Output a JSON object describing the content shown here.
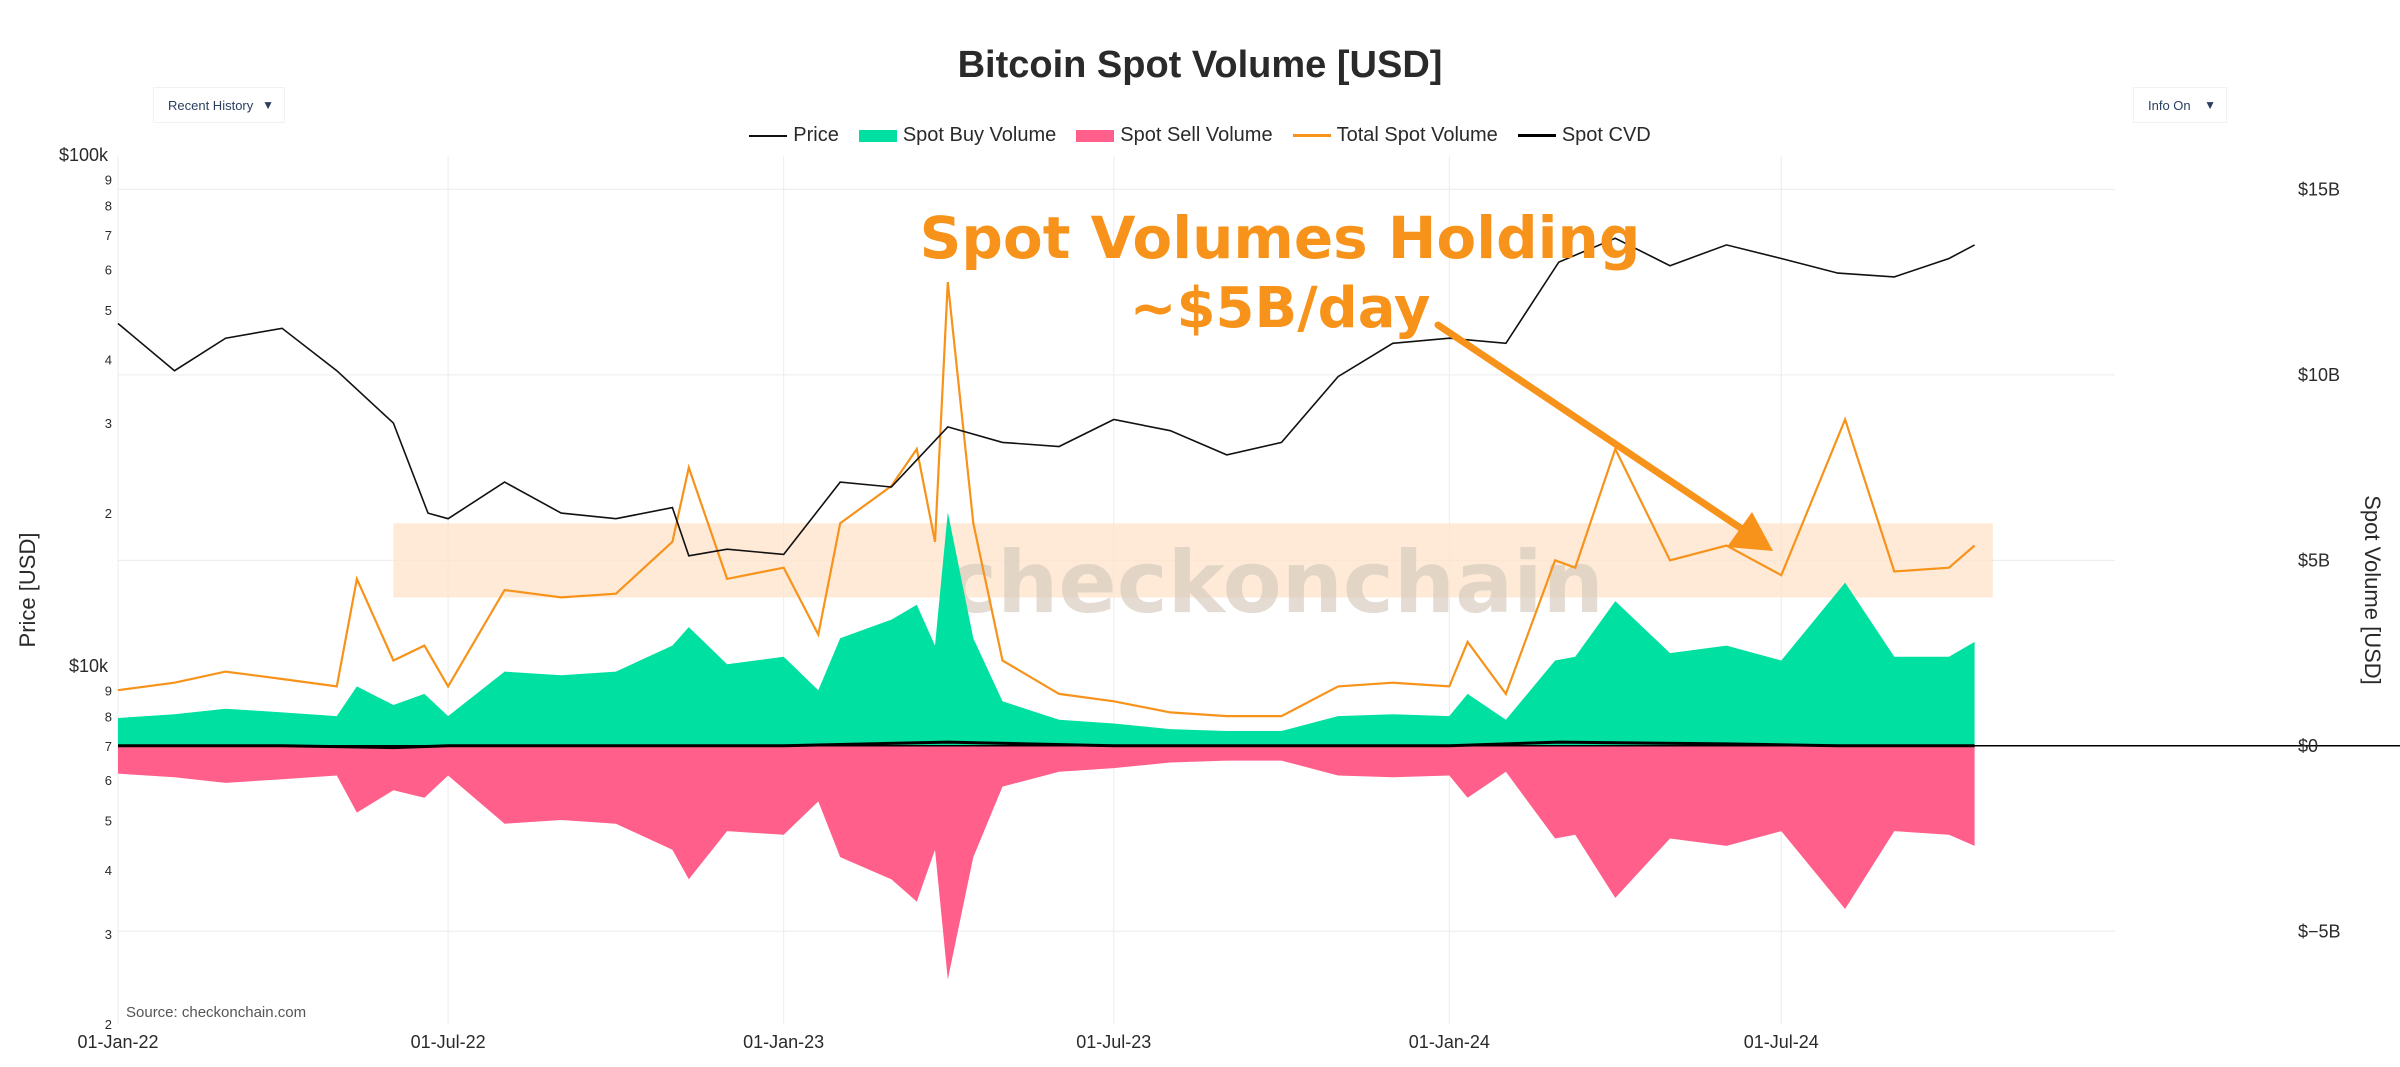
{
  "chart_data": {
    "type": "area",
    "title": "Bitcoin Spot Volume [USD]",
    "controls": {
      "left_dropdown": "Recent History",
      "right_dropdown": "Info On",
      "arrow": "▼"
    },
    "legend": [
      "Price",
      "Spot Buy Volume",
      "Spot Sell Volume",
      "Total Spot Volume",
      "Spot CVD"
    ],
    "colors": {
      "price": "#111111",
      "buy": "#00e0a0",
      "sell": "#ff5f8a",
      "total": "#f7931a",
      "cvd": "#000000",
      "band": "#fde3c8"
    },
    "annotation": {
      "line1": "Spot Volumes Holding",
      "line2": "~$5B/day"
    },
    "watermark": "checkonchain",
    "source": "Source: checkonchain.com",
    "y_left": {
      "label": "Price [USD]",
      "scale": "log",
      "ticks": [
        {
          "v": 2000,
          "t": "2"
        },
        {
          "v": 3000,
          "t": "3"
        },
        {
          "v": 4000,
          "t": "4"
        },
        {
          "v": 5000,
          "t": "5"
        },
        {
          "v": 6000,
          "t": "6"
        },
        {
          "v": 7000,
          "t": "7"
        },
        {
          "v": 8000,
          "t": "8"
        },
        {
          "v": 9000,
          "t": "9"
        },
        {
          "v": 10000,
          "t": "$10k"
        },
        {
          "v": 20000,
          "t": "2"
        },
        {
          "v": 30000,
          "t": "3"
        },
        {
          "v": 40000,
          "t": "4"
        },
        {
          "v": 50000,
          "t": "5"
        },
        {
          "v": 60000,
          "t": "6"
        },
        {
          "v": 70000,
          "t": "7"
        },
        {
          "v": 80000,
          "t": "8"
        },
        {
          "v": 90000,
          "t": "9"
        },
        {
          "v": 100000,
          "t": "$100k"
        }
      ]
    },
    "y_right": {
      "label": "Spot Volume [USD]",
      "range": [
        -7.5,
        15.9
      ],
      "ticks": [
        {
          "v": 15,
          "t": "$15B"
        },
        {
          "v": 10,
          "t": "$10B"
        },
        {
          "v": 5,
          "t": "$5B"
        },
        {
          "v": 0,
          "t": "$0"
        },
        {
          "v": -5,
          "t": "$−5B"
        }
      ]
    },
    "x_axis": {
      "ticks": [
        "01-Jan-22",
        "01-Jul-22",
        "01-Jan-23",
        "01-Jul-23",
        "01-Jan-24",
        "01-Jul-24"
      ]
    },
    "band_range_b": [
      4,
      6
    ],
    "series": {
      "price": {
        "name": "Price",
        "x": [
          "2022-01-01",
          "2022-02-01",
          "2022-03-01",
          "2022-04-01",
          "2022-05-01",
          "2022-06-01",
          "2022-06-20",
          "2022-07-01",
          "2022-08-01",
          "2022-09-01",
          "2022-10-01",
          "2022-11-01",
          "2022-11-10",
          "2022-12-01",
          "2023-01-01",
          "2023-02-01",
          "2023-03-01",
          "2023-04-01",
          "2023-05-01",
          "2023-06-01",
          "2023-07-01",
          "2023-08-01",
          "2023-09-01",
          "2023-10-01",
          "2023-11-01",
          "2023-12-01",
          "2024-01-01",
          "2024-02-01",
          "2024-03-01",
          "2024-04-01",
          "2024-05-01",
          "2024-06-01",
          "2024-07-01",
          "2024-08-01",
          "2024-09-01",
          "2024-10-01",
          "2024-10-15"
        ],
        "y": [
          47000,
          38000,
          44000,
          46000,
          38000,
          30000,
          20000,
          19500,
          23000,
          20000,
          19500,
          20500,
          16500,
          17000,
          16600,
          23000,
          22500,
          29500,
          27500,
          27000,
          30500,
          29000,
          26000,
          27500,
          37000,
          43000,
          44000,
          43000,
          62000,
          69000,
          61000,
          67000,
          63000,
          59000,
          58000,
          63000,
          67000
        ]
      },
      "total_spot_volume": {
        "name": "Total Spot Volume",
        "x": [
          "2022-01-01",
          "2022-02-01",
          "2022-03-01",
          "2022-04-01",
          "2022-05-01",
          "2022-05-12",
          "2022-06-01",
          "2022-06-18",
          "2022-07-01",
          "2022-08-01",
          "2022-09-01",
          "2022-10-01",
          "2022-11-01",
          "2022-11-10",
          "2022-12-01",
          "2023-01-01",
          "2023-01-20",
          "2023-02-01",
          "2023-03-01",
          "2023-03-15",
          "2023-03-25",
          "2023-04-01",
          "2023-04-15",
          "2023-05-01",
          "2023-06-01",
          "2023-07-01",
          "2023-08-01",
          "2023-09-01",
          "2023-10-01",
          "2023-11-01",
          "2023-12-01",
          "2024-01-01",
          "2024-01-11",
          "2024-02-01",
          "2024-02-28",
          "2024-03-10",
          "2024-04-01",
          "2024-05-01",
          "2024-06-01",
          "2024-07-01",
          "2024-08-05",
          "2024-09-01",
          "2024-10-01",
          "2024-10-15"
        ],
        "y": [
          1.5,
          1.7,
          2.0,
          1.8,
          1.6,
          4.5,
          2.3,
          2.7,
          1.6,
          4.2,
          4.0,
          4.1,
          5.5,
          7.5,
          4.5,
          4.8,
          3.0,
          6.0,
          7.0,
          8.0,
          5.5,
          12.5,
          6.0,
          2.3,
          1.4,
          1.2,
          0.9,
          0.8,
          0.8,
          1.6,
          1.7,
          1.6,
          2.8,
          1.4,
          5.0,
          4.8,
          8.0,
          5.0,
          5.4,
          4.6,
          8.8,
          4.7,
          4.8,
          5.4
        ]
      },
      "spot_buy_volume": {
        "name": "Spot Buy Volume",
        "x": [
          "2022-01-01",
          "2022-02-01",
          "2022-03-01",
          "2022-04-01",
          "2022-05-01",
          "2022-05-12",
          "2022-06-01",
          "2022-06-18",
          "2022-07-01",
          "2022-08-01",
          "2022-09-01",
          "2022-10-01",
          "2022-11-01",
          "2022-11-10",
          "2022-12-01",
          "2023-01-01",
          "2023-01-20",
          "2023-02-01",
          "2023-03-01",
          "2023-03-15",
          "2023-03-25",
          "2023-04-01",
          "2023-04-15",
          "2023-05-01",
          "2023-06-01",
          "2023-07-01",
          "2023-08-01",
          "2023-09-01",
          "2023-10-01",
          "2023-11-01",
          "2023-12-01",
          "2024-01-01",
          "2024-01-11",
          "2024-02-01",
          "2024-02-28",
          "2024-03-10",
          "2024-04-01",
          "2024-05-01",
          "2024-06-01",
          "2024-07-01",
          "2024-08-05",
          "2024-09-01",
          "2024-10-01",
          "2024-10-15"
        ],
        "y": [
          0.75,
          0.85,
          1.0,
          0.9,
          0.8,
          1.6,
          1.1,
          1.4,
          0.8,
          2.0,
          1.9,
          2.0,
          2.7,
          3.2,
          2.2,
          2.4,
          1.5,
          2.9,
          3.4,
          3.8,
          2.7,
          6.3,
          2.9,
          1.2,
          0.7,
          0.6,
          0.45,
          0.4,
          0.4,
          0.8,
          0.85,
          0.8,
          1.4,
          0.7,
          2.3,
          2.4,
          3.9,
          2.5,
          2.7,
          2.3,
          4.4,
          2.4,
          2.4,
          2.8
        ]
      },
      "spot_sell_volume": {
        "name": "Spot Sell Volume",
        "x": [
          "2022-01-01",
          "2022-02-01",
          "2022-03-01",
          "2022-04-01",
          "2022-05-01",
          "2022-05-12",
          "2022-06-01",
          "2022-06-18",
          "2022-07-01",
          "2022-08-01",
          "2022-09-01",
          "2022-10-01",
          "2022-11-01",
          "2022-11-10",
          "2022-12-01",
          "2023-01-01",
          "2023-01-20",
          "2023-02-01",
          "2023-03-01",
          "2023-03-15",
          "2023-03-25",
          "2023-04-01",
          "2023-04-15",
          "2023-05-01",
          "2023-06-01",
          "2023-07-01",
          "2023-08-01",
          "2023-09-01",
          "2023-10-01",
          "2023-11-01",
          "2023-12-01",
          "2024-01-01",
          "2024-01-11",
          "2024-02-01",
          "2024-02-28",
          "2024-03-10",
          "2024-04-01",
          "2024-05-01",
          "2024-06-01",
          "2024-07-01",
          "2024-08-05",
          "2024-09-01",
          "2024-10-01",
          "2024-10-15"
        ],
        "y": [
          -0.75,
          -0.85,
          -1.0,
          -0.9,
          -0.8,
          -1.8,
          -1.2,
          -1.4,
          -0.8,
          -2.1,
          -2.0,
          -2.1,
          -2.8,
          -3.6,
          -2.3,
          -2.4,
          -1.5,
          -3.0,
          -3.6,
          -4.2,
          -2.8,
          -6.3,
          -3.0,
          -1.1,
          -0.7,
          -0.6,
          -0.45,
          -0.4,
          -0.4,
          -0.8,
          -0.85,
          -0.8,
          -1.4,
          -0.7,
          -2.5,
          -2.4,
          -4.1,
          -2.5,
          -2.7,
          -2.3,
          -4.4,
          -2.3,
          -2.4,
          -2.7
        ]
      },
      "spot_cvd": {
        "name": "Spot CVD",
        "x": [
          "2022-01-01",
          "2022-04-01",
          "2022-06-01",
          "2022-07-01",
          "2022-10-01",
          "2023-01-01",
          "2023-04-01",
          "2023-07-01",
          "2023-10-01",
          "2024-01-01",
          "2024-03-01",
          "2024-06-01",
          "2024-08-01",
          "2024-10-15"
        ],
        "y": [
          0.0,
          0.0,
          -0.05,
          0.0,
          0.0,
          0.0,
          0.1,
          0.0,
          0.0,
          0.0,
          0.1,
          0.05,
          0.0,
          0.0
        ]
      }
    }
  }
}
